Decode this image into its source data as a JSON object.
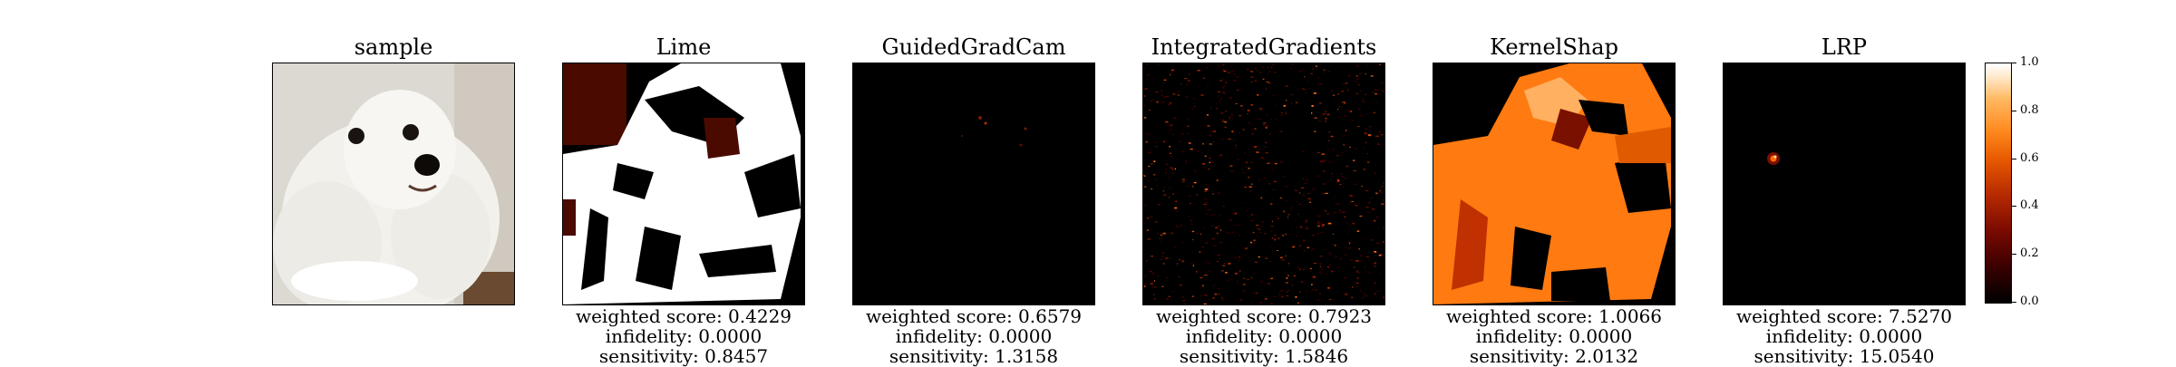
{
  "panels": [
    {
      "title": "sample"
    },
    {
      "title": "Lime",
      "weighted_label": "weighted score:",
      "weighted": "0.4229",
      "infidelity_label": "infidelity:",
      "infidelity": "0.0000",
      "sensitivity_label": "sensitivity:",
      "sensitivity": "0.8457"
    },
    {
      "title": "GuidedGradCam",
      "weighted_label": "weighted score:",
      "weighted": "0.6579",
      "infidelity_label": "infidelity:",
      "infidelity": "0.0000",
      "sensitivity_label": "sensitivity:",
      "sensitivity": "1.3158"
    },
    {
      "title": "IntegratedGradients",
      "weighted_label": "weighted score:",
      "weighted": "0.7923",
      "infidelity_label": "infidelity:",
      "infidelity": "0.0000",
      "sensitivity_label": "sensitivity:",
      "sensitivity": "1.5846"
    },
    {
      "title": "KernelShap",
      "weighted_label": "weighted score:",
      "weighted": "1.0066",
      "infidelity_label": "infidelity:",
      "infidelity": "0.0000",
      "sensitivity_label": "sensitivity:",
      "sensitivity": "2.0132"
    },
    {
      "title": "LRP",
      "weighted_label": "weighted score:",
      "weighted": "7.5270",
      "infidelity_label": "infidelity:",
      "infidelity": "0.0000",
      "sensitivity_label": "sensitivity:",
      "sensitivity": "15.0540"
    }
  ],
  "colorbar": {
    "ticks": [
      "0.0",
      "0.2",
      "0.4",
      "0.6",
      "0.8",
      "1.0"
    ],
    "colormap": "gist_heat",
    "colors": {
      "low": "#000000",
      "mid": "#e85a00",
      "high": "#ffffff"
    }
  }
}
